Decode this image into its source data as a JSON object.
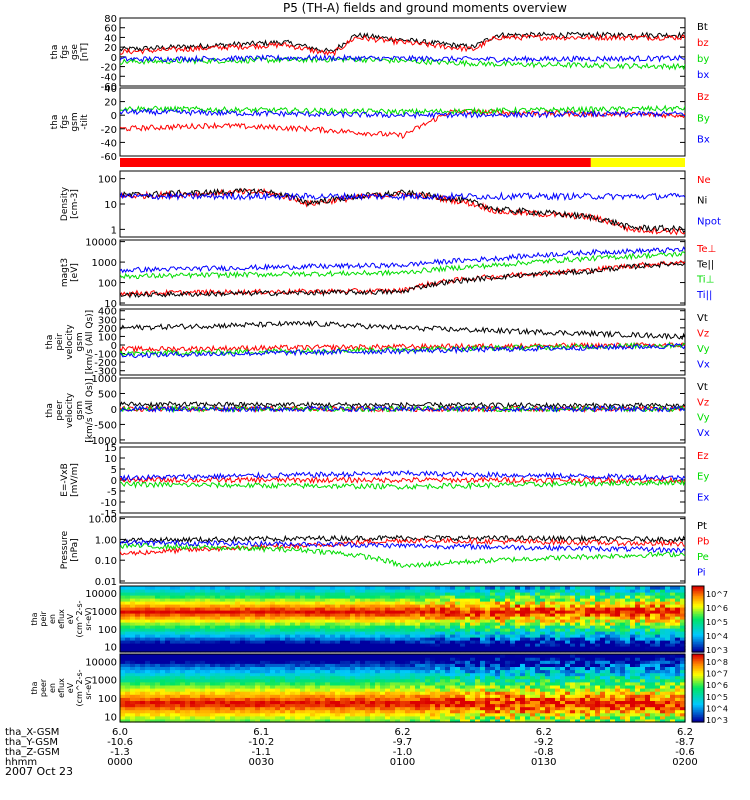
{
  "title": "P5 (TH-A) fields and ground moments overview",
  "date_label": "2007 Oct 23",
  "colors": {
    "black": "#000000",
    "red": "#ff0000",
    "green": "#00dd00",
    "blue": "#0000ff",
    "yellow": "#ffff00"
  },
  "chart_data": {
    "type": "line",
    "x_range": [
      0,
      120
    ],
    "x_tick_rows": [
      {
        "label": "tha_X-GSM",
        "values": [
          "6.0",
          "6.1",
          "6.2",
          "6.2",
          "6.2"
        ]
      },
      {
        "label": "tha_Y-GSM",
        "values": [
          "-10.6",
          "-10.2",
          "-9.7",
          "-9.2",
          "-8.7"
        ]
      },
      {
        "label": "tha_Z-GSM",
        "values": [
          "-1.3",
          "-1.1",
          "-1.0",
          "-0.8",
          "-0.6"
        ]
      },
      {
        "label": "hhmm",
        "values": [
          "0000",
          "0030",
          "0100",
          "0130",
          "0200"
        ]
      }
    ],
    "panels": [
      {
        "id": "fgs-gse",
        "ylabel": [
          "tha",
          "fgs",
          "gse",
          "[nT]"
        ],
        "scale": "linear",
        "ylim": [
          -60,
          80
        ],
        "ticks": [
          "80",
          "60",
          "40",
          "20",
          "0",
          "-20",
          "-40",
          "-60"
        ],
        "series": [
          {
            "name": "Bt",
            "color": "black",
            "profile": [
              [
                0,
                15
              ],
              [
                35,
                30
              ],
              [
                45,
                10
              ],
              [
                50,
                45
              ],
              [
                75,
                20
              ],
              [
                80,
                45
              ],
              [
                120,
                45
              ]
            ]
          },
          {
            "name": "bz",
            "color": "red",
            "profile": [
              [
                0,
                10
              ],
              [
                35,
                25
              ],
              [
                45,
                5
              ],
              [
                50,
                40
              ],
              [
                75,
                15
              ],
              [
                80,
                40
              ],
              [
                120,
                40
              ]
            ]
          },
          {
            "name": "by",
            "color": "green",
            "profile": [
              [
                0,
                -10
              ],
              [
                50,
                -5
              ],
              [
                80,
                -15
              ],
              [
                120,
                -20
              ]
            ]
          },
          {
            "name": "bx",
            "color": "blue",
            "profile": [
              [
                0,
                -5
              ],
              [
                40,
                -2
              ],
              [
                80,
                -5
              ],
              [
                120,
                -3
              ]
            ]
          }
        ]
      },
      {
        "id": "fgs-gsm",
        "ylabel": [
          "tha",
          "fgs",
          "gsm",
          "-tilt"
        ],
        "scale": "linear",
        "ylim": [
          -60,
          40
        ],
        "ticks": [
          "40",
          "20",
          "0",
          "-20",
          "-40",
          "-60"
        ],
        "series": [
          {
            "name": "Bz",
            "color": "red",
            "profile": [
              [
                0,
                -20
              ],
              [
                20,
                -15
              ],
              [
                40,
                -20
              ],
              [
                60,
                -30
              ],
              [
                70,
                5
              ],
              [
                120,
                0
              ]
            ]
          },
          {
            "name": "By",
            "color": "green",
            "profile": [
              [
                0,
                10
              ],
              [
                60,
                5
              ],
              [
                120,
                10
              ]
            ]
          },
          {
            "name": "Bx",
            "color": "blue",
            "profile": [
              [
                0,
                5
              ],
              [
                60,
                0
              ],
              [
                120,
                2
              ]
            ]
          }
        ]
      },
      {
        "id": "density",
        "ylabel": [
          "Density",
          "[cm-3]"
        ],
        "scale": "log",
        "ylim": [
          0.5,
          200
        ],
        "ticks": [
          "100",
          "10",
          "1"
        ],
        "series": [
          {
            "name": "Ne",
            "color": "red",
            "profile": [
              [
                0,
                20
              ],
              [
                30,
                30
              ],
              [
                40,
                10
              ],
              [
                60,
                25
              ],
              [
                80,
                5
              ],
              [
                100,
                3
              ],
              [
                108,
                1
              ],
              [
                120,
                0.8
              ]
            ]
          },
          {
            "name": "Ni",
            "color": "black",
            "profile": [
              [
                0,
                22
              ],
              [
                30,
                32
              ],
              [
                40,
                11
              ],
              [
                60,
                27
              ],
              [
                80,
                6
              ],
              [
                100,
                3
              ],
              [
                108,
                1.2
              ],
              [
                120,
                1
              ]
            ]
          },
          {
            "name": "Npot",
            "color": "blue",
            "profile": [
              [
                0,
                20
              ],
              [
                120,
                20
              ]
            ]
          }
        ]
      },
      {
        "id": "temperature",
        "ylabel": [
          "magt3",
          "[eV]"
        ],
        "scale": "log",
        "ylim": [
          8,
          12000
        ],
        "ticks": [
          "10000",
          "1000",
          "100",
          "10"
        ],
        "series": [
          {
            "name": "Te⊥",
            "color": "red",
            "profile": [
              [
                0,
                30
              ],
              [
                60,
                40
              ],
              [
                80,
                200
              ],
              [
                100,
                400
              ],
              [
                120,
                1000
              ]
            ]
          },
          {
            "name": "Te||",
            "color": "black",
            "profile": [
              [
                0,
                25
              ],
              [
                60,
                35
              ],
              [
                80,
                180
              ],
              [
                100,
                350
              ],
              [
                120,
                900
              ]
            ]
          },
          {
            "name": "Ti⊥",
            "color": "green",
            "profile": [
              [
                0,
                200
              ],
              [
                60,
                300
              ],
              [
                80,
                700
              ],
              [
                100,
                1500
              ],
              [
                120,
                2500
              ]
            ]
          },
          {
            "name": "Ti||",
            "color": "blue",
            "profile": [
              [
                0,
                400
              ],
              [
                60,
                700
              ],
              [
                80,
                1500
              ],
              [
                100,
                3000
              ],
              [
                120,
                4000
              ]
            ]
          }
        ]
      },
      {
        "id": "velocity-gsm",
        "ylabel": [
          "tha",
          "peir",
          "velocity",
          "gsm",
          "[km/s (All Qs)]"
        ],
        "scale": "linear",
        "ylim": [
          -350,
          420
        ],
        "ticks": [
          "400",
          "300",
          "200",
          "100",
          "0",
          "-100",
          "-200",
          "-300"
        ],
        "series": [
          {
            "name": "Vt",
            "color": "black",
            "profile": [
              [
                0,
                200
              ],
              [
                40,
                250
              ],
              [
                60,
                200
              ],
              [
                120,
                100
              ]
            ]
          },
          {
            "name": "Vz",
            "color": "red",
            "profile": [
              [
                0,
                -50
              ],
              [
                60,
                -20
              ],
              [
                120,
                0
              ]
            ]
          },
          {
            "name": "Vy",
            "color": "green",
            "profile": [
              [
                0,
                -100
              ],
              [
                60,
                -50
              ],
              [
                120,
                0
              ]
            ]
          },
          {
            "name": "Vx",
            "color": "blue",
            "profile": [
              [
                0,
                -120
              ],
              [
                60,
                -70
              ],
              [
                120,
                -10
              ]
            ]
          }
        ]
      },
      {
        "id": "velocity-perp",
        "ylabel": [
          "tha",
          "peer",
          "velocity",
          "gsm",
          "[km/s (All Qs)]"
        ],
        "scale": "linear",
        "ylim": [
          -1100,
          1000
        ],
        "ticks": [
          "1000",
          "500",
          "0",
          "-500",
          "-1000"
        ],
        "series": [
          {
            "name": "Vt",
            "color": "black",
            "profile": [
              [
                0,
                150
              ],
              [
                120,
                100
              ]
            ]
          },
          {
            "name": "Vz",
            "color": "red",
            "profile": [
              [
                0,
                0
              ],
              [
                120,
                0
              ]
            ]
          },
          {
            "name": "Vy",
            "color": "green",
            "profile": [
              [
                0,
                0
              ],
              [
                120,
                0
              ]
            ]
          },
          {
            "name": "Vx",
            "color": "blue",
            "profile": [
              [
                0,
                0
              ],
              [
                120,
                0
              ]
            ]
          }
        ]
      },
      {
        "id": "e-field",
        "ylabel": [
          "E=-VxB",
          "[mV/m]"
        ],
        "scale": "linear",
        "ylim": [
          -15,
          15
        ],
        "ticks": [
          "15",
          "10",
          "5",
          "0",
          "-5",
          "-10",
          "-15"
        ],
        "series": [
          {
            "name": "Ez",
            "color": "red",
            "profile": [
              [
                0,
                0
              ],
              [
                120,
                0
              ]
            ]
          },
          {
            "name": "Ey",
            "color": "green",
            "profile": [
              [
                0,
                -2
              ],
              [
                60,
                -3
              ],
              [
                120,
                -1
              ]
            ]
          },
          {
            "name": "Ex",
            "color": "blue",
            "profile": [
              [
                0,
                1
              ],
              [
                60,
                3
              ],
              [
                120,
                1
              ]
            ]
          }
        ]
      },
      {
        "id": "pressure",
        "ylabel": [
          "Pressure",
          "[nPa]"
        ],
        "scale": "log",
        "ylim": [
          0.008,
          12
        ],
        "ticks": [
          "10.00",
          "1.00",
          "0.10",
          "0.01"
        ],
        "series": [
          {
            "name": "Pt",
            "color": "black",
            "profile": [
              [
                0,
                0.9
              ],
              [
                60,
                1.2
              ],
              [
                120,
                1
              ]
            ]
          },
          {
            "name": "Pb",
            "color": "red",
            "profile": [
              [
                0,
                0.2
              ],
              [
                40,
                0.5
              ],
              [
                60,
                0.9
              ],
              [
                120,
                0.6
              ]
            ]
          },
          {
            "name": "Pe",
            "color": "green",
            "profile": [
              [
                0,
                0.5
              ],
              [
                40,
                0.3
              ],
              [
                60,
                0.05
              ],
              [
                120,
                0.2
              ]
            ]
          },
          {
            "name": "Pi",
            "color": "blue",
            "profile": [
              [
                0,
                0.7
              ],
              [
                40,
                0.6
              ],
              [
                60,
                0.5
              ],
              [
                120,
                0.3
              ]
            ]
          }
        ]
      }
    ],
    "spectrograms": [
      {
        "id": "peir-efluxspec",
        "ylabel": [
          "tha",
          "peir",
          "en",
          "eflux",
          "eV",
          "(cm^2-s-",
          "sr-eV)"
        ],
        "ticks": [
          "10000",
          "1000",
          "100",
          "10"
        ],
        "colorbar": [
          "10^7",
          "10^6",
          "10^5",
          "10^4",
          "10^3"
        ],
        "peak_band_eV": [
          300,
          3000
        ],
        "x_variability": [
          [
            0,
            0.2
          ],
          [
            60,
            0.3
          ],
          [
            80,
            0.9
          ],
          [
            120,
            0.8
          ]
        ]
      },
      {
        "id": "peer-efluxspec",
        "ylabel": [
          "tha",
          "peer",
          "en",
          "eflux",
          "eV",
          "(cm^2-s-",
          "sr-eV)"
        ],
        "ticks": [
          "10000",
          "1000",
          "100",
          "10"
        ],
        "colorbar": [
          "10^8",
          "10^7",
          "10^6",
          "10^5",
          "10^4",
          "10^3"
        ],
        "peak_band_eV": [
          10,
          300
        ],
        "x_variability": [
          [
            0,
            0.2
          ],
          [
            60,
            0.3
          ],
          [
            80,
            0.9
          ],
          [
            120,
            0.8
          ]
        ]
      }
    ],
    "mode_bar": {
      "colors": [
        "red",
        "yellow"
      ],
      "switch_at": 100
    }
  }
}
